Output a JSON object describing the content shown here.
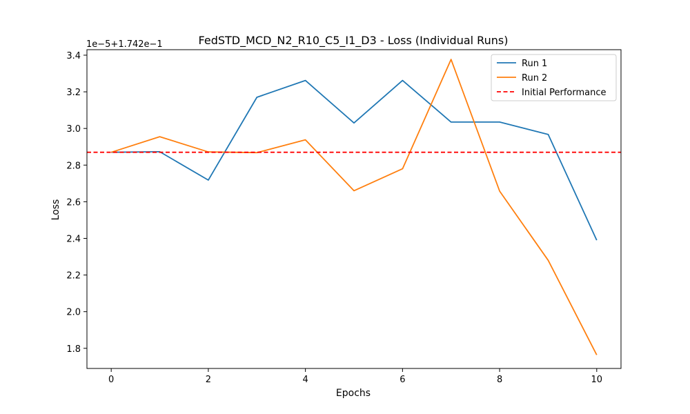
{
  "chart_data": {
    "type": "line",
    "title": "FedSTD_MCD_N2_R10_C5_I1_D3 - Loss (Individual Runs)",
    "xlabel": "Epochs",
    "ylabel": "Loss",
    "offset_text": "1e−5+1.742e−1",
    "xlim": [
      -0.5,
      10.5
    ],
    "ylim": [
      1.69,
      3.43
    ],
    "xticks": [
      0,
      2,
      4,
      6,
      8,
      10
    ],
    "xtick_labels": [
      "0",
      "2",
      "4",
      "6",
      "8",
      "10"
    ],
    "yticks": [
      1.8,
      2.0,
      2.2,
      2.4,
      2.6,
      2.8,
      3.0,
      3.2,
      3.4
    ],
    "ytick_labels": [
      "1.8",
      "2.0",
      "2.2",
      "2.4",
      "2.6",
      "2.8",
      "3.0",
      "3.2",
      "3.4"
    ],
    "x": [
      0,
      1,
      2,
      3,
      4,
      5,
      6,
      7,
      8,
      9,
      10
    ],
    "series": [
      {
        "name": "Run 1",
        "color": "#1f77b4",
        "style": "solid",
        "values": [
          2.87,
          2.873,
          2.718,
          3.17,
          3.262,
          3.03,
          3.262,
          3.035,
          3.035,
          2.967,
          2.39
        ]
      },
      {
        "name": "Run 2",
        "color": "#ff7f0e",
        "style": "solid",
        "values": [
          2.87,
          2.955,
          2.872,
          2.868,
          2.938,
          2.66,
          2.78,
          3.377,
          2.658,
          2.28,
          1.764
        ]
      }
    ],
    "reference_line": {
      "name": "Initial Performance",
      "color": "#ff0000",
      "style": "dashed",
      "value": 2.87
    },
    "grid": false,
    "legend_position": "upper right"
  }
}
